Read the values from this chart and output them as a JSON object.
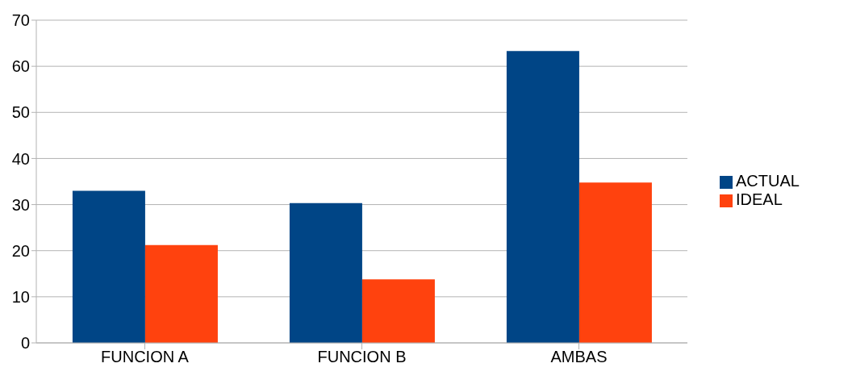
{
  "chart_data": {
    "type": "bar",
    "categories": [
      "FUNCION A",
      "FUNCION B",
      "AMBAS"
    ],
    "series": [
      {
        "name": "ACTUAL",
        "color": "#004586",
        "values": [
          33,
          30.3,
          63.3
        ]
      },
      {
        "name": "IDEAL",
        "color": "#ff420e",
        "values": [
          21.2,
          13.8,
          34.8
        ]
      }
    ],
    "ylim": [
      0,
      70
    ],
    "yticks": [
      0,
      10,
      20,
      30,
      40,
      50,
      60,
      70
    ],
    "grid": "y",
    "legend": "right"
  }
}
